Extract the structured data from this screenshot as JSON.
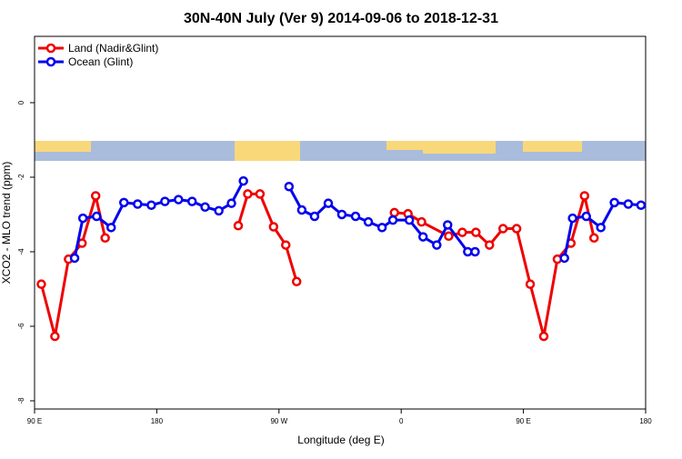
{
  "chart_data": {
    "type": "line",
    "title": "30N-40N July (Ver 9)   2014-09-06 to 2018-12-31",
    "x_label": "Longitude (deg E)",
    "y_label": "XCO2 - MLO trend (ppm)",
    "xlim": [
      90,
      540
    ],
    "ylim": [
      -8.22,
      1.78
    ],
    "xticks": [
      {
        "value": 90,
        "label": "90 E"
      },
      180,
      {
        "value": 270,
        "label": "90 W"
      },
      {
        "value": 360,
        "label": "0"
      },
      {
        "value": 450,
        "label": "90 E"
      },
      {
        "value": 540,
        "label": "180"
      }
    ],
    "yticks": [
      0,
      -2,
      -4,
      -6,
      -8
    ],
    "legend": "top-left",
    "series": [
      {
        "name": "Land (Nadir&Glint)",
        "color": "#ee0000",
        "x": [
          95,
          105,
          115,
          125,
          135,
          142,
          null,
          240,
          247,
          256,
          266,
          275,
          283,
          null,
          355,
          365,
          375,
          395,
          405,
          415,
          425,
          435,
          445,
          455,
          465,
          475,
          485,
          495,
          502
        ],
        "values": [
          -4.87,
          -6.27,
          -4.2,
          -3.77,
          -2.5,
          -3.63,
          null,
          -3.3,
          -2.45,
          -2.45,
          -3.33,
          -3.82,
          -4.8,
          null,
          -2.95,
          -2.98,
          -3.2,
          -3.58,
          -3.48,
          -3.48,
          -3.82,
          -3.38,
          -3.38,
          -4.87,
          -6.27,
          -4.2,
          -3.77,
          -2.5,
          -3.63
        ]
      },
      {
        "name": "Ocean (Glint)",
        "color": "#0000ee",
        "x": [
          119.5,
          125.6,
          135.7,
          146.4,
          155.8,
          165.9,
          176,
          186,
          196,
          206,
          215.6,
          225.7,
          235,
          243.8,
          null,
          277.4,
          286.8,
          296.2,
          306.3,
          316.3,
          326.4,
          335.8,
          345.9,
          353.9,
          366,
          376.1,
          386.2,
          394.2,
          409,
          414.4,
          null,
          480.2,
          486.2,
          496.3,
          507,
          517,
          527.2,
          536.6
        ],
        "values": [
          -4.17,
          -3.1,
          -3.05,
          -3.35,
          -2.68,
          -2.72,
          -2.75,
          -2.65,
          -2.6,
          -2.65,
          -2.8,
          -2.9,
          -2.7,
          -2.1,
          null,
          -2.25,
          -2.88,
          -3.05,
          -2.7,
          -3.0,
          -3.05,
          -3.2,
          -3.35,
          -3.15,
          -3.15,
          -3.6,
          -3.82,
          -3.28,
          -4.0,
          -4.0,
          null,
          -4.17,
          -3.1,
          -3.05,
          -3.35,
          -2.68,
          -2.72,
          -2.75
        ]
      }
    ]
  }
}
